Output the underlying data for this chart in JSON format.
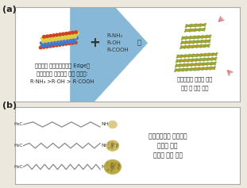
{
  "bg_color": "#ede8de",
  "panel_bg": "#ffffff",
  "panel_border": "#aaaaaa",
  "label_a": "(a)",
  "label_b": "(b)",
  "text_a_left1": "전이금속 칼코젠화합물의 Edge와",
  "text_a_left2": "계면활성제 작용기의 결합 에너지:",
  "text_a_left3": "R·NH₃ >R·OH > R·COOH",
  "text_a_right1": "계면활성제 종류에 따른",
  "text_a_right2": "층수 및 크기 조절",
  "plus_sign": "+",
  "arrow_label": "등",
  "reagents1": "R-NH₂",
  "reagents2": "R-OH",
  "reagents3": "R-COOH",
  "text_b_right1": "계면활성제의 탄소고리",
  "text_b_right2": "길이에 따른",
  "text_b_right3": "양자점 크기 조절",
  "tmdc_color_red": "#cc4422",
  "tmdc_color_blue": "#4477cc",
  "tmdc_color_yellow": "#ddcc44",
  "layer_gold": "#c8a020",
  "layer_green": "#557722",
  "layer_dot": "#88aa33",
  "arrow_color": "#88b8d8",
  "arrow_dark": "#5590b8",
  "pink_arrow": "#e08888",
  "chain_color": "#888888",
  "dot_color1": "#d8cc88",
  "dot_color2": "#ccbb66",
  "dot_color3": "#bbaa44",
  "dot_edge": "#999966"
}
